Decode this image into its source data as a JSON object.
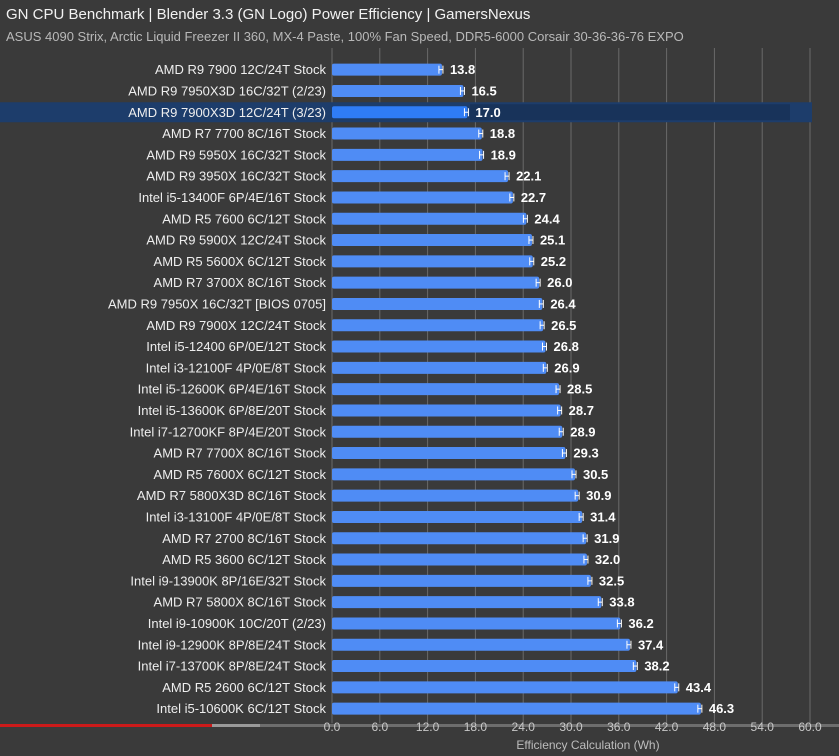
{
  "title": "GN CPU Benchmark | Blender 3.3 (GN Logo) Power Efficiency | GamersNexus",
  "subtitle": "ASUS 4090 Strix, Arctic Liquid Freezer II 360, MX-4 Paste, 100% Fan Speed, DDR5-6000 Corsair 30-36-36-76 EXPO",
  "colors": {
    "background": "#3a3a3a",
    "bar": "#4f8cf5",
    "highlight_bar": "#2f7cf6",
    "highlight_row": "#1d3d6b",
    "grid": "#6a6a6a",
    "progress": "#cc1a1a"
  },
  "chart_data": {
    "type": "bar",
    "orientation": "horizontal",
    "title": "GN CPU Benchmark | Blender 3.3 (GN Logo) Power Efficiency | GamersNexus",
    "subtitle": "ASUS 4090 Strix, Arctic Liquid Freezer II 360, MX-4 Paste, 100% Fan Speed, DDR5-6000 Corsair 30-36-36-76 EXPO",
    "xlabel": "Efficiency Calculation (Wh)",
    "ylabel": "",
    "xlim": [
      0,
      60
    ],
    "ticks": [
      "0.0",
      "6.0",
      "12.0",
      "18.0",
      "24.0",
      "30.0",
      "36.0",
      "42.0",
      "48.0",
      "54.0",
      "60.0"
    ],
    "grid": true,
    "highlight": "AMD R9 7900X3D 12C/24T (3/23)",
    "categories": [
      "AMD R9 7900 12C/24T Stock",
      "AMD R9 7950X3D 16C/32T (2/23)",
      "AMD R9 7900X3D 12C/24T (3/23)",
      "AMD R7 7700 8C/16T Stock",
      "AMD R9 5950X 16C/32T Stock",
      "AMD R9 3950X 16C/32T Stock",
      "Intel i5-13400F 6P/4E/16T Stock",
      "AMD R5 7600 6C/12T Stock",
      "AMD R9 5900X 12C/24T Stock",
      "AMD R5 5600X 6C/12T Stock",
      "AMD R7 3700X 8C/16T Stock",
      "AMD R9 7950X 16C/32T [BIOS 0705]",
      "AMD R9 7900X 12C/24T Stock",
      "Intel i5-12400 6P/0E/12T Stock",
      "Intel i3-12100F 4P/0E/8T Stock",
      "Intel i5-12600K 6P/4E/16T Stock",
      "Intel i5-13600K 6P/8E/20T Stock",
      "Intel i7-12700KF 8P/4E/20T Stock",
      "AMD R7 7700X 8C/16T Stock",
      "AMD R5 7600X 6C/12T Stock",
      "AMD R7 5800X3D 8C/16T Stock",
      "Intel i3-13100F 4P/0E/8T Stock",
      "AMD R7 2700 8C/16T Stock",
      "AMD R5 3600 6C/12T Stock",
      "Intel i9-13900K 8P/16E/32T Stock",
      "AMD R7 5800X 8C/16T Stock",
      "Intel i9-10900K 10C/20T (2/23)",
      "Intel i9-12900K 8P/8E/24T Stock",
      "Intel i7-13700K 8P/8E/24T Stock",
      "AMD R5 2600 6C/12T Stock",
      "Intel i5-10600K 6C/12T Stock"
    ],
    "values": [
      13.8,
      16.5,
      17.0,
      18.8,
      18.9,
      22.1,
      22.7,
      24.4,
      25.1,
      25.2,
      26.0,
      26.4,
      26.5,
      26.8,
      26.9,
      28.5,
      28.7,
      28.9,
      29.3,
      30.5,
      30.9,
      31.4,
      31.9,
      32.0,
      32.5,
      33.8,
      36.2,
      37.4,
      38.2,
      43.4,
      46.3
    ],
    "value_labels": [
      "13.8",
      "16.5",
      "17.0",
      "18.8",
      "18.9",
      "22.1",
      "22.7",
      "24.4",
      "25.1",
      "25.2",
      "26.0",
      "26.4",
      "26.5",
      "26.8",
      "26.9",
      "28.5",
      "28.7",
      "28.9",
      "29.3",
      "30.5",
      "30.9",
      "31.4",
      "31.9",
      "32.0",
      "32.5",
      "33.8",
      "36.2",
      "37.4",
      "38.2",
      "43.4",
      "46.3"
    ]
  }
}
